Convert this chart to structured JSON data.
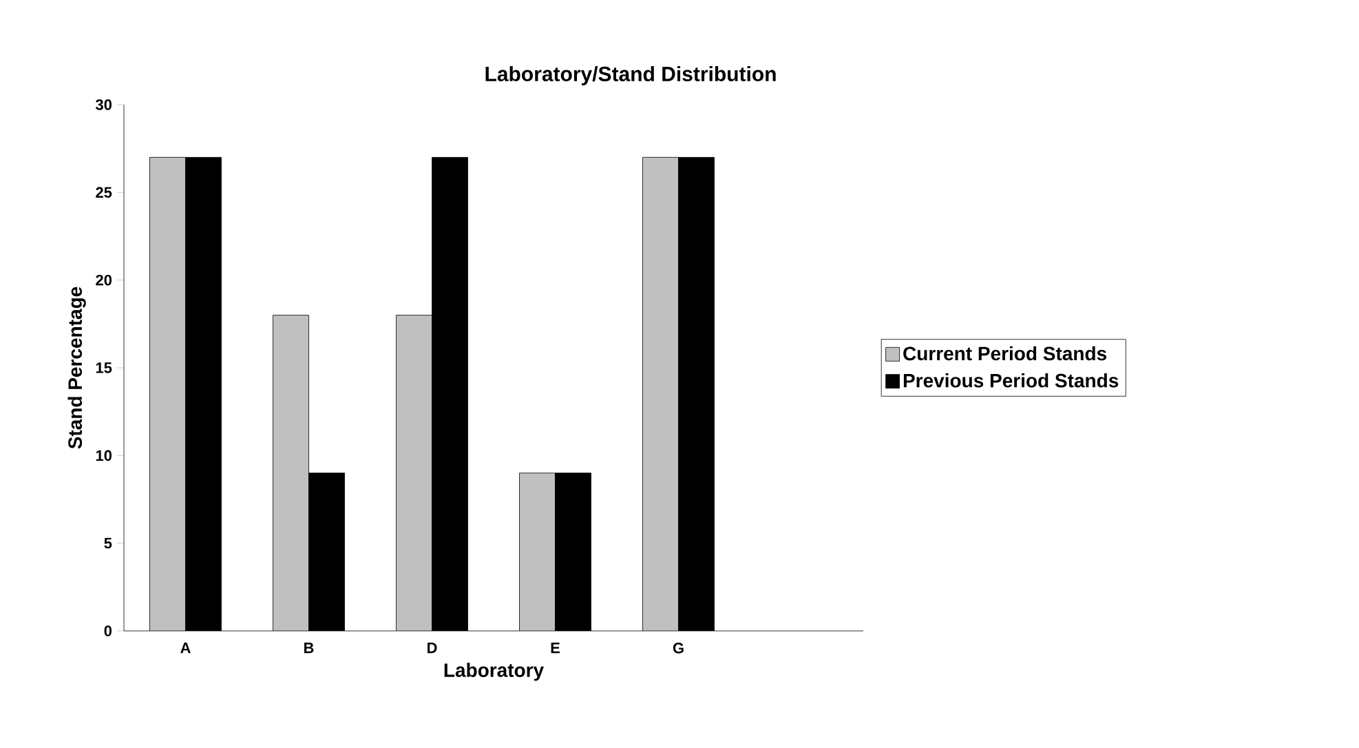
{
  "chart_data": {
    "type": "bar",
    "title": "Laboratory/Stand Distribution",
    "xlabel": "Laboratory",
    "ylabel": "Stand Percentage",
    "categories": [
      "A",
      "B",
      "D",
      "E",
      "G",
      null
    ],
    "series": [
      {
        "name": "Current Period Stands",
        "color": "#c0c0c0",
        "values": [
          27,
          18,
          18,
          9,
          27,
          null
        ]
      },
      {
        "name": "Previous Period Stands",
        "color": "#000000",
        "values": [
          27,
          9,
          27,
          9,
          27,
          null
        ]
      }
    ],
    "ylim": [
      0,
      30
    ],
    "yticks": [
      0,
      5,
      10,
      15,
      20,
      25,
      30
    ],
    "grid": false,
    "legend": "right"
  }
}
